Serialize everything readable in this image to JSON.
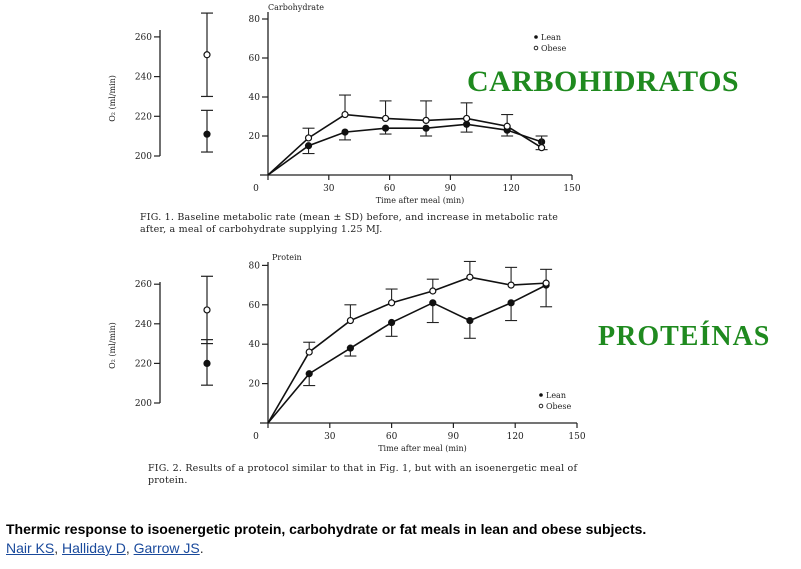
{
  "chart_data": [
    {
      "type": "line",
      "figure": "carbohydrate",
      "panel_title": "Carbohydrate",
      "baseline_ylim": [
        200,
        260
      ],
      "baseline_ticks": [
        200,
        220,
        240,
        260
      ],
      "baseline": {
        "lean": {
          "mean": 211,
          "low": 202,
          "high": 223
        },
        "obese": {
          "mean": 251,
          "low": 230,
          "high": 272
        }
      },
      "ylim": [
        0,
        80
      ],
      "yticks": [
        20,
        40,
        60,
        80
      ],
      "xlim": [
        0,
        150
      ],
      "xticks": [
        0,
        30,
        60,
        90,
        120,
        150
      ],
      "xlabel": "Time after meal (min)",
      "ylabel": "O₂ (ml/min)",
      "legend": {
        "lean": "Lean",
        "obese": "Obese"
      },
      "x": [
        0,
        20,
        38,
        58,
        78,
        98,
        118,
        135
      ],
      "series": [
        {
          "name": "Lean",
          "marker": "filled",
          "values": [
            0,
            15,
            22,
            24,
            24,
            26,
            23,
            17
          ],
          "err": [
            0,
            4,
            4,
            3,
            4,
            4,
            3,
            4
          ]
        },
        {
          "name": "Obese",
          "marker": "open",
          "values": [
            0,
            19,
            31,
            29,
            28,
            29,
            25,
            14
          ],
          "err": [
            0,
            5,
            10,
            9,
            10,
            8,
            6,
            6
          ]
        }
      ],
      "caption_lines": [
        "FIG. 1.  Baseline metabolic rate (mean ± SD) before, and increase in metabolic rate",
        "after, a meal of carbohydrate supplying 1.25 MJ."
      ],
      "label_overlay": "CARBOHIDRATOS"
    },
    {
      "type": "line",
      "figure": "protein",
      "panel_title": "Protein",
      "baseline_ylim": [
        200,
        260
      ],
      "baseline_ticks": [
        200,
        220,
        240,
        260
      ],
      "baseline": {
        "lean": {
          "mean": 220,
          "low": 209,
          "high": 232
        },
        "obese": {
          "mean": 247,
          "low": 230,
          "high": 264
        }
      },
      "ylim": [
        0,
        80
      ],
      "yticks": [
        20,
        40,
        60,
        80
      ],
      "xlim": [
        0,
        150
      ],
      "xticks": [
        0,
        30,
        60,
        90,
        120,
        150
      ],
      "xlabel": "Time after meal (min)",
      "ylabel": "O₂ (ml/min)",
      "legend": {
        "lean": "Lean",
        "obese": "Obese"
      },
      "x": [
        0,
        20,
        40,
        60,
        80,
        98,
        118,
        135
      ],
      "series": [
        {
          "name": "Lean",
          "marker": "filled",
          "values": [
            0,
            25,
            38,
            51,
            61,
            52,
            61,
            70
          ],
          "err": [
            0,
            6,
            4,
            7,
            10,
            9,
            9,
            11
          ]
        },
        {
          "name": "Obese",
          "marker": "open",
          "values": [
            0,
            36,
            52,
            61,
            67,
            74,
            70,
            71
          ],
          "err": [
            0,
            5,
            8,
            7,
            6,
            8,
            9,
            7
          ]
        }
      ],
      "caption_lines": [
        "FIG. 2.  Results of a protocol similar to that in Fig. 1, but with an isoenergetic meal of",
        "protein."
      ],
      "label_overlay": "PROTEÍNAS"
    }
  ],
  "footer": {
    "title": "Thermic response to isoenergetic protein, carbohydrate or fat meals in lean and obese subjects.",
    "authors": [
      "Nair KS",
      "Halliday D",
      "Garrow JS"
    ]
  }
}
